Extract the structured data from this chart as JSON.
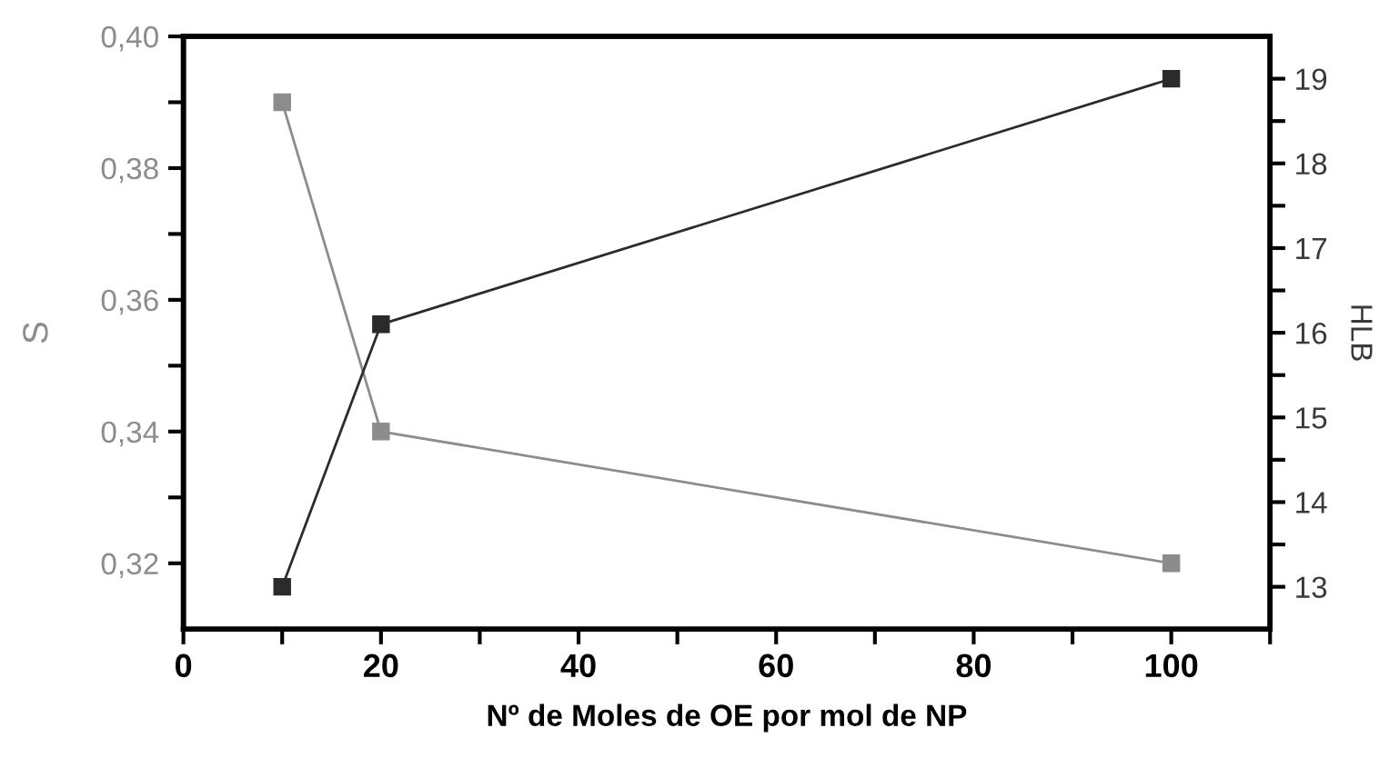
{
  "chart_data": {
    "type": "line",
    "xlabel": "Nº de Moles de OE por mol de NP",
    "ylabel": "S",
    "y2label": "HLB",
    "x": [
      10,
      20,
      100
    ],
    "series": [
      {
        "color": "#8c8c8c",
        "values": [
          0.39,
          0.34,
          0.32
        ]
      },
      {
        "color": "#2b2b2b",
        "values": [
          13.0,
          16.1,
          19.0
        ],
        "axis": "y2"
      }
    ],
    "marker": "square",
    "line_style": "solid",
    "grid": false,
    "legend": false,
    "xlim": [
      0,
      110
    ],
    "xticks": [
      0,
      {
        "value": 10,
        "label": null
      },
      20,
      {
        "value": 30,
        "label": null
      },
      40,
      {
        "value": 50,
        "label": null
      },
      60,
      {
        "value": 70,
        "label": null
      },
      80,
      {
        "value": 90,
        "label": null
      },
      100,
      {
        "value": 110,
        "label": null
      }
    ],
    "ylim": [
      0.31,
      0.4
    ],
    "yticks": [
      {
        "value": 0.32,
        "label": "0,32"
      },
      {
        "value": 0.33,
        "label": null
      },
      {
        "value": 0.34,
        "label": "0,34"
      },
      {
        "value": 0.35,
        "label": null
      },
      {
        "value": 0.36,
        "label": "0,36"
      },
      {
        "value": 0.37,
        "label": null
      },
      {
        "value": 0.38,
        "label": "0,38"
      },
      {
        "value": 0.39,
        "label": null
      },
      {
        "value": 0.4,
        "label": "0,40"
      }
    ],
    "y2lim": [
      12.5,
      19.5
    ],
    "y2ticks": [
      13,
      {
        "value": 13.5,
        "label": null
      },
      14,
      {
        "value": 14.5,
        "label": null
      },
      15,
      {
        "value": 15.5,
        "label": null
      },
      16,
      {
        "value": 16.5,
        "label": null
      },
      17,
      {
        "value": 17.5,
        "label": null
      },
      18,
      {
        "value": 18.5,
        "label": null
      },
      19
    ]
  }
}
